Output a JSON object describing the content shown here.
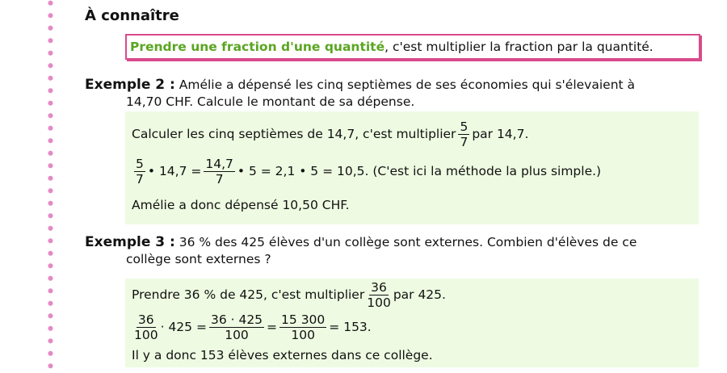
{
  "heading": "À connaître",
  "rule": {
    "bold": "Prendre une fraction d'une quantité",
    "rest": ", c'est multiplier la fraction par la quantité."
  },
  "ex2": {
    "label": "Exemple 2 :",
    "text": " Amélie a dépensé les cinq septièmes de ses économies qui s'élevaient à",
    "text2": "14,70 CHF. Calcule le montant de sa dépense.",
    "l1a": "Calculer les cinq septièmes de 14,7, c'est multiplier",
    "f1n": "5",
    "f1d": "7",
    "l1b": "par 14,7.",
    "l2f1n": "5",
    "l2f1d": "7",
    "l2a": "• 14,7 =",
    "l2f2n": "14,7",
    "l2f2d": "7",
    "l2b": "• 5 = 2,1 • 5 = 10,5. (C'est ici la méthode la plus simple.)",
    "l3": "Amélie a donc dépensé 10,50 CHF."
  },
  "ex3": {
    "label": "Exemple 3 :",
    "text": " 36 % des 425 élèves d'un collège sont externes. Combien d'élèves de ce",
    "text2": "collège sont externes ?",
    "l1a": "Prendre 36 % de 425, c'est multiplier",
    "f1n": "36",
    "f1d": "100",
    "l1b": "par 425.",
    "f2n": "36",
    "f2d": "100",
    "l2a": "· 425 =",
    "f3n": "36 · 425",
    "f3d": "100",
    "eq": "=",
    "f4n": "15 300",
    "f4d": "100",
    "l2b": "= 153.",
    "l3": "Il y a donc 153 élèves externes dans ce collège."
  }
}
